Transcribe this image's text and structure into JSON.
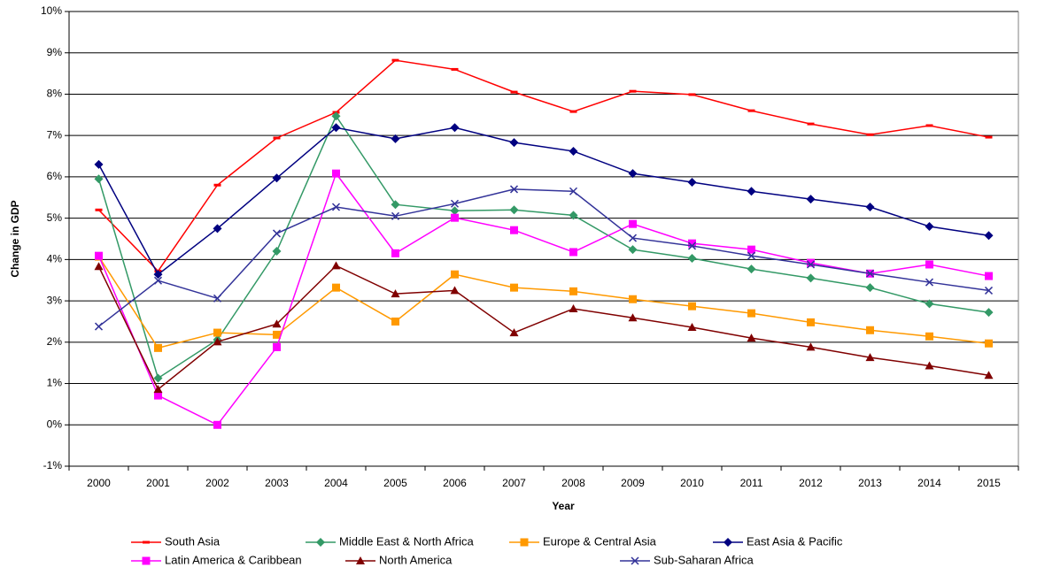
{
  "chart_data": {
    "type": "line",
    "x_label": "Year",
    "y_label": "Change in GDP",
    "categories": [
      "2000",
      "2001",
      "2002",
      "2003",
      "2004",
      "2005",
      "2006",
      "2007",
      "2008",
      "2009",
      "2010",
      "2011",
      "2012",
      "2013",
      "2014",
      "2015"
    ],
    "ylim": [
      -1,
      10
    ],
    "yticks": [
      {
        "value": -1,
        "label": "-1%"
      },
      {
        "value": 0,
        "label": "0%"
      },
      {
        "value": 1,
        "label": "1%"
      },
      {
        "value": 2,
        "label": "2%"
      },
      {
        "value": 3,
        "label": "3%"
      },
      {
        "value": 4,
        "label": "4%"
      },
      {
        "value": 5,
        "label": "5%"
      },
      {
        "value": 6,
        "label": "6%"
      },
      {
        "value": 7,
        "label": "7%"
      },
      {
        "value": 8,
        "label": "8%"
      },
      {
        "value": 9,
        "label": "9%"
      },
      {
        "value": 10,
        "label": "10%"
      }
    ],
    "grid": true,
    "legend": "bottom",
    "series": [
      {
        "name": "South Asia",
        "color": "#ff0000",
        "marker": "dash",
        "values": [
          5.2,
          3.72,
          5.8,
          6.94,
          7.56,
          8.82,
          8.6,
          8.05,
          7.58,
          8.07,
          7.99,
          7.6,
          7.28,
          7.02,
          7.24,
          6.96
        ]
      },
      {
        "name": "Middle East & North Africa",
        "color": "#339966",
        "marker": "diamond",
        "values": [
          5.95,
          1.13,
          2.06,
          4.2,
          7.47,
          5.33,
          5.18,
          5.2,
          5.07,
          4.24,
          4.03,
          3.77,
          3.55,
          3.32,
          2.93,
          2.72
        ]
      },
      {
        "name": "Europe & Central Asia",
        "color": "#ff9900",
        "marker": "square",
        "values": [
          4.07,
          1.86,
          2.23,
          2.18,
          3.32,
          2.5,
          3.64,
          3.32,
          3.23,
          3.04,
          2.87,
          2.7,
          2.48,
          2.29,
          2.14,
          1.97
        ]
      },
      {
        "name": "East Asia & Pacific",
        "color": "#000080",
        "marker": "diamond",
        "values": [
          6.3,
          3.64,
          4.75,
          5.97,
          7.19,
          6.92,
          7.19,
          6.83,
          6.62,
          6.08,
          5.87,
          5.65,
          5.46,
          5.27,
          4.8,
          4.58
        ]
      },
      {
        "name": "Latin America & Caribbean",
        "color": "#ff00ff",
        "marker": "square",
        "values": [
          4.09,
          0.71,
          0,
          1.88,
          6.08,
          4.15,
          5.01,
          4.71,
          4.18,
          4.86,
          4.39,
          4.24,
          3.92,
          3.66,
          3.88,
          3.6
        ]
      },
      {
        "name": "North America",
        "color": "#800000",
        "marker": "triangle",
        "values": [
          3.83,
          0.86,
          2.01,
          2.44,
          3.85,
          3.17,
          3.25,
          2.23,
          2.81,
          2.59,
          2.36,
          2.1,
          1.88,
          1.63,
          1.43,
          1.2
        ]
      },
      {
        "name": "Sub-Saharan Africa",
        "color": "#333399",
        "marker": "x",
        "values": [
          2.38,
          3.49,
          3.06,
          4.63,
          5.27,
          5.05,
          5.35,
          5.7,
          5.65,
          4.52,
          4.33,
          4.09,
          3.88,
          3.66,
          3.45,
          3.25
        ]
      }
    ]
  }
}
